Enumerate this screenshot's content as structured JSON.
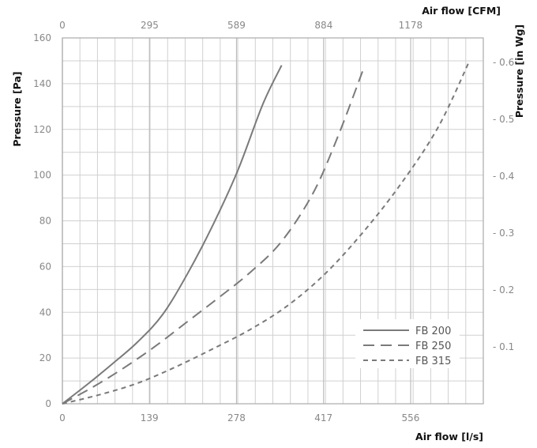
{
  "chart_data": {
    "type": "line",
    "title": "",
    "x_bottom": {
      "label": "Air flow [l/s]",
      "ticks": [
        "0",
        "139",
        "278",
        "417",
        "556"
      ],
      "range": [
        0,
        672
      ]
    },
    "x_top": {
      "label": "Air flow [CFM]",
      "ticks": [
        "0",
        "295",
        "589",
        "884",
        "1178"
      ],
      "range": [
        0,
        1424
      ]
    },
    "y_left": {
      "label": "Pressure [Pa]",
      "ticks": [
        "0",
        "20",
        "40",
        "60",
        "80",
        "100",
        "120",
        "140",
        "160"
      ],
      "range": [
        0,
        160
      ]
    },
    "y_right": {
      "label": "Pressure [in Wg]",
      "ticks": [
        "0.1",
        "0.2",
        "0.3",
        "0.4",
        "0.5",
        "0.6"
      ],
      "range": [
        0,
        0.643
      ]
    },
    "grid": true,
    "legend": "lower-right",
    "series": [
      {
        "name": "FB 200",
        "dash": "solid",
        "color": "#7a7a7a",
        "x": [
          0,
          40,
          80,
          120,
          160,
          200,
          240,
          280,
          320,
          350
        ],
        "y": [
          0,
          8.5,
          17.5,
          27,
          39,
          57,
          78,
          102,
          131,
          148
        ]
      },
      {
        "name": "FB 250",
        "dash": "long-dash",
        "color": "#7a7a7a",
        "x": [
          0,
          50,
          100,
          150,
          200,
          250,
          300,
          350,
          400,
          440,
          480
        ],
        "y": [
          0,
          7.5,
          16,
          25.5,
          36,
          46.5,
          57.5,
          71,
          92,
          117,
          146
        ]
      },
      {
        "name": "FB 315",
        "dash": "short-dash",
        "color": "#7a7a7a",
        "x": [
          0,
          60,
          120,
          180,
          240,
          300,
          360,
          420,
          480,
          540,
          600,
          650
        ],
        "y": [
          0,
          4,
          9,
          16,
          24,
          32.5,
          43,
          57,
          75,
          96,
          121,
          150
        ]
      }
    ]
  }
}
